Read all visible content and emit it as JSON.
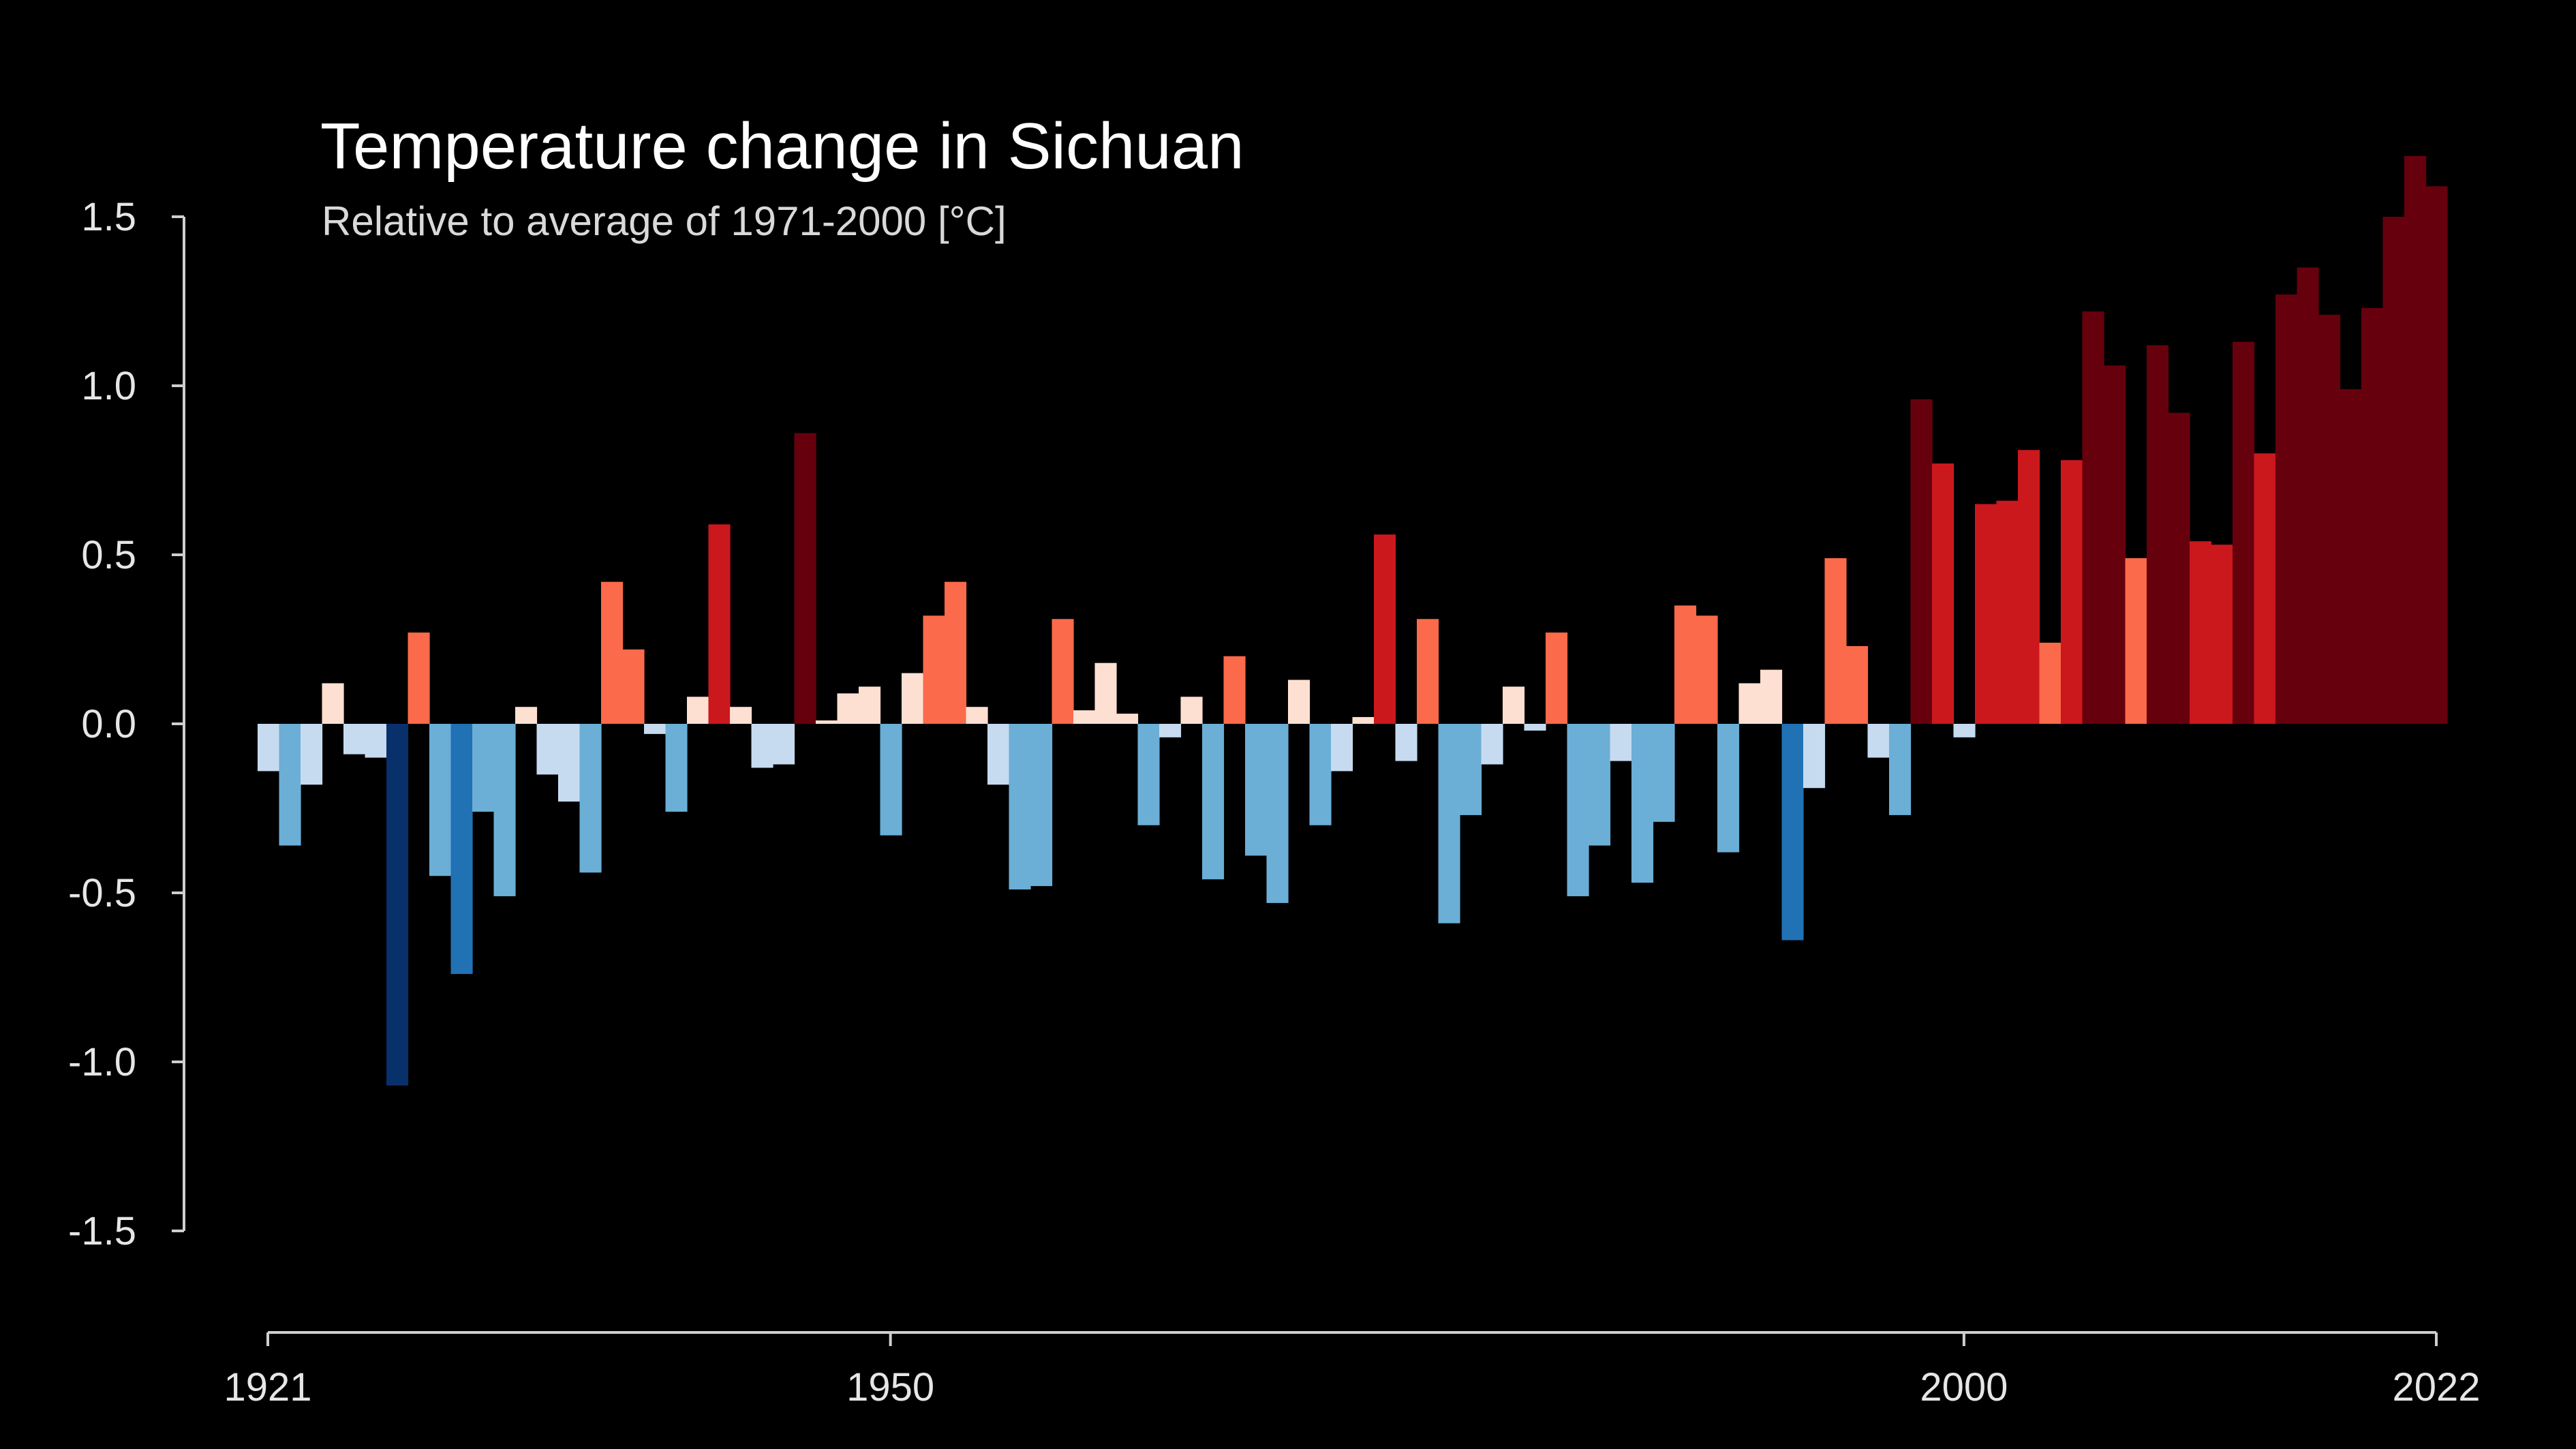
{
  "chart_data": {
    "type": "bar",
    "title": "Temperature change in Sichuan",
    "subtitle": "Relative to average of 1971-2000  [°C]",
    "x_start": 1921,
    "x_end": 2022,
    "xticks": [
      "1921",
      "1950",
      "2000",
      "2022"
    ],
    "yticks": [
      "1.5",
      "1.0",
      "0.5",
      "0.0",
      "-0.5",
      "-1.0",
      "-1.5"
    ],
    "ylim": [
      -1.5,
      1.5
    ],
    "grid": false,
    "legend": "none",
    "values": [
      -0.14,
      -0.36,
      -0.18,
      0.12,
      -0.09,
      -0.1,
      -1.07,
      0.27,
      -0.45,
      -0.74,
      -0.26,
      -0.51,
      0.05,
      -0.15,
      -0.23,
      -0.44,
      0.42,
      0.22,
      -0.03,
      -0.26,
      0.08,
      0.59,
      0.05,
      -0.13,
      -0.12,
      0.86,
      0.01,
      0.09,
      0.11,
      -0.33,
      0.15,
      0.32,
      0.42,
      0.05,
      -0.18,
      -0.49,
      -0.48,
      0.31,
      0.04,
      0.18,
      0.03,
      -0.3,
      -0.04,
      0.08,
      -0.46,
      0.2,
      -0.39,
      -0.53,
      0.13,
      -0.3,
      -0.14,
      0.02,
      0.56,
      -0.11,
      0.31,
      -0.59,
      -0.27,
      -0.12,
      0.11,
      -0.02,
      0.27,
      -0.51,
      -0.36,
      -0.11,
      -0.47,
      -0.29,
      0.35,
      0.32,
      -0.38,
      0.12,
      0.16,
      -0.64,
      -0.19,
      0.49,
      0.23,
      -0.1,
      -0.27,
      0.96,
      0.77,
      -0.04,
      0.65,
      0.66,
      0.81,
      0.24,
      0.78,
      1.22,
      1.06,
      0.49,
      1.12,
      0.92,
      0.54,
      0.53,
      1.13,
      0.8,
      1.27,
      1.35,
      1.21,
      0.99,
      1.23,
      1.5,
      1.68,
      1.59
    ],
    "color_scale": {
      "cold_strong": "#08306b",
      "cold": "#2171b5",
      "cold_mid": "#6baed6",
      "cold_light": "#c6dbef",
      "warm_light": "#fee0d2",
      "warm": "#fb6a4a",
      "warm_mid": "#cb181d",
      "warm_strong": "#67000d"
    }
  }
}
